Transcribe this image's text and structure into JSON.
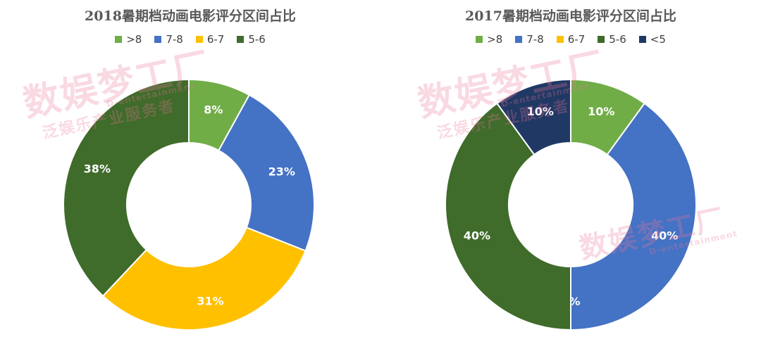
{
  "chart_data": [
    {
      "type": "pie",
      "title": "2018暑期档动画电影评分区间占比",
      "categories": [
        ">8",
        "7-8",
        "6-7",
        "5-6"
      ],
      "values": [
        8,
        23,
        31,
        38
      ],
      "labels": [
        "8%",
        "23%",
        "31%",
        "38%"
      ],
      "colors": [
        "#70ad47",
        "#4472c4",
        "#ffc000",
        "#3f6b2b"
      ],
      "label_colors": [
        "#ffffff",
        "#ffffff",
        "#ffffff",
        "#ffffff"
      ],
      "legend_position": "top",
      "donut": true
    },
    {
      "type": "pie",
      "title": "2017暑期档动画电影评分区间占比",
      "categories": [
        ">8",
        "7-8",
        "6-7",
        "5-6",
        "<5"
      ],
      "values": [
        10,
        40,
        0,
        40,
        10
      ],
      "labels": [
        "10%",
        "40%",
        "0%",
        "40%",
        "10%"
      ],
      "colors": [
        "#70ad47",
        "#4472c4",
        "#ffc000",
        "#3f6b2b",
        "#203864"
      ],
      "label_colors": [
        "#ffffff",
        "#ffffff",
        "#ffffff",
        "#ffffff",
        "#ffffff"
      ],
      "legend_position": "top",
      "donut": true
    }
  ],
  "watermark": {
    "main": "数娱梦工厂",
    "sub": "D-entertainment",
    "tagline": "泛娱乐产业服务者"
  }
}
